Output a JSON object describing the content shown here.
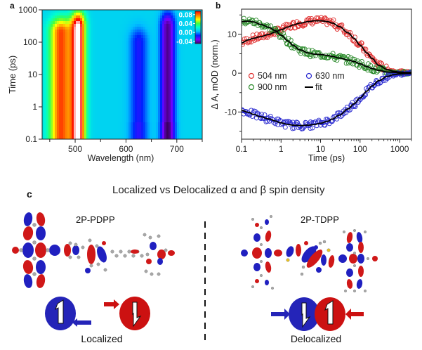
{
  "figure": {
    "panel_labels": {
      "a": "a",
      "b": "b",
      "c": "c"
    }
  },
  "colors": {
    "spin_blue": "#2424b8",
    "spin_red": "#cc1111",
    "series_504": "#e03030",
    "series_630": "#2a2ad0",
    "series_900": "#2a8a2a",
    "fit": "#000000"
  },
  "chart_data": [
    {
      "id": "a",
      "type": "heatmap",
      "title": "",
      "xlabel": "Wavelength (nm)",
      "ylabel": "Time (ps)",
      "xlim": [
        435,
        750
      ],
      "ylim": [
        0.1,
        1000
      ],
      "yscale": "log",
      "xticks": [
        500,
        600,
        700
      ],
      "xminor_ticks": [
        450,
        550,
        650,
        750
      ],
      "yticks": [
        0.1,
        1,
        10,
        100,
        1000
      ],
      "ytick_labels": [
        "0.1",
        "1",
        "10",
        "100",
        "1000"
      ],
      "colorbar": {
        "ticks": [
          0.08,
          0.04,
          0.0,
          -0.04
        ],
        "tick_labels": [
          "0.08",
          "0.04",
          "0.00",
          "-0.04"
        ],
        "range": [
          -0.05,
          0.1
        ],
        "colors_low_to_high": [
          "#3a0060",
          "#7a00ff",
          "#0020ff",
          "#00c0ff",
          "#00ffd0",
          "#40ff40",
          "#ffff00",
          "#ff8000",
          "#ff0000",
          "#ffffff"
        ],
        "placement": "top-right"
      },
      "features": [
        {
          "type": "positive",
          "center_nm": 472,
          "width_nm": 22,
          "t_max_ps": 200,
          "peak": 0.07
        },
        {
          "type": "positive",
          "center_nm": 506,
          "width_nm": 14,
          "t_max_ps": 300,
          "peak": 0.095
        },
        {
          "type": "negative",
          "center_nm": 625,
          "width_nm": 18,
          "t_max_ps": 100,
          "peak": -0.025
        },
        {
          "type": "negative",
          "center_nm": 682,
          "width_nm": 14,
          "t_max_ps": 300,
          "peak": -0.05
        }
      ],
      "background_value": 0.005
    },
    {
      "id": "b",
      "type": "scatter",
      "title": "",
      "xlabel": "Time (ps)",
      "ylabel": "Δ A, mOD (norm.)",
      "xscale": "log",
      "xlim": [
        0.1,
        2000
      ],
      "ylim": [
        -17,
        16.5
      ],
      "xticks": [
        0.1,
        1,
        10,
        100,
        1000
      ],
      "xtick_labels": [
        "0.1",
        "1",
        "10",
        "100",
        "1000"
      ],
      "yticks": [
        -10,
        0,
        10
      ],
      "ytick_labels": [
        "-10",
        "0",
        "10"
      ],
      "legend": {
        "placement": "center-left",
        "entries": [
          {
            "label": "504 nm",
            "marker": "circle",
            "color": "#e03030"
          },
          {
            "label": "630 nm",
            "marker": "circle",
            "color": "#2a2ad0"
          },
          {
            "label": "900 nm",
            "marker": "circle",
            "color": "#2a8a2a"
          },
          {
            "label": "fit",
            "marker": "line",
            "color": "#000000"
          }
        ]
      },
      "series": [
        {
          "name": "504 nm",
          "color": "#e03030",
          "x": [
            0.1,
            0.15,
            0.2,
            0.3,
            0.5,
            0.7,
            1,
            1.5,
            2,
            3,
            5,
            7,
            10,
            15,
            20,
            30,
            50,
            70,
            100,
            150,
            200,
            300,
            500,
            700,
            1000,
            1500,
            2000
          ],
          "y": [
            7.8,
            8.6,
            9.0,
            9.4,
            10.0,
            10.6,
            11.2,
            11.9,
            12.4,
            12.9,
            13.3,
            13.5,
            13.5,
            13.3,
            12.9,
            12.0,
            10.4,
            9.0,
            7.2,
            5.2,
            3.8,
            2.0,
            0.9,
            0.5,
            0.3,
            0.2,
            0.2
          ]
        },
        {
          "name": "900 nm",
          "color": "#2a8a2a",
          "x": [
            0.1,
            0.15,
            0.2,
            0.3,
            0.5,
            0.7,
            1,
            1.5,
            2,
            3,
            5,
            7,
            10,
            15,
            20,
            30,
            50,
            70,
            100,
            150,
            200,
            300,
            500,
            700,
            1000,
            1500,
            2000
          ],
          "y": [
            13.3,
            13.4,
            13.2,
            12.6,
            11.8,
            11.0,
            9.8,
            8.3,
            7.2,
            6.0,
            5.2,
            4.9,
            4.8,
            4.6,
            4.3,
            3.9,
            3.4,
            3.0,
            2.4,
            1.7,
            1.2,
            0.7,
            0.3,
            0.2,
            0.1,
            0.1,
            0.2
          ]
        },
        {
          "name": "630 nm",
          "color": "#2a2ad0",
          "x": [
            0.1,
            0.15,
            0.2,
            0.3,
            0.5,
            0.7,
            1,
            1.5,
            2,
            3,
            5,
            7,
            10,
            15,
            20,
            30,
            50,
            70,
            100,
            150,
            200,
            300,
            500,
            700,
            1000,
            1500,
            2000
          ],
          "y": [
            -9.6,
            -10.1,
            -10.6,
            -11.2,
            -11.8,
            -12.3,
            -12.8,
            -13.2,
            -13.4,
            -13.5,
            -13.4,
            -13.2,
            -12.9,
            -12.4,
            -11.8,
            -10.8,
            -9.2,
            -7.9,
            -6.4,
            -4.6,
            -3.3,
            -1.9,
            -0.8,
            -0.4,
            -0.2,
            -0.1,
            -0.1
          ]
        }
      ],
      "fits": [
        {
          "name": "504 nm fit",
          "color": "#000000"
        },
        {
          "name": "900 nm fit",
          "color": "#000000"
        },
        {
          "name": "630 nm fit",
          "color": "#000000"
        }
      ]
    }
  ],
  "panel_c": {
    "title": "Localized vs Delocalized α and β spin density",
    "left": {
      "molecule": "2P-PDPP",
      "caption": "Localized",
      "spins": [
        {
          "color": "blue",
          "arrow": "up"
        },
        {
          "color": "red",
          "arrow": "down"
        }
      ]
    },
    "right": {
      "molecule": "2P-TDPP",
      "caption": "Delocalized",
      "spins": [
        {
          "color": "blue",
          "arrow": "down"
        },
        {
          "color": "red",
          "arrow": "up"
        }
      ]
    }
  }
}
